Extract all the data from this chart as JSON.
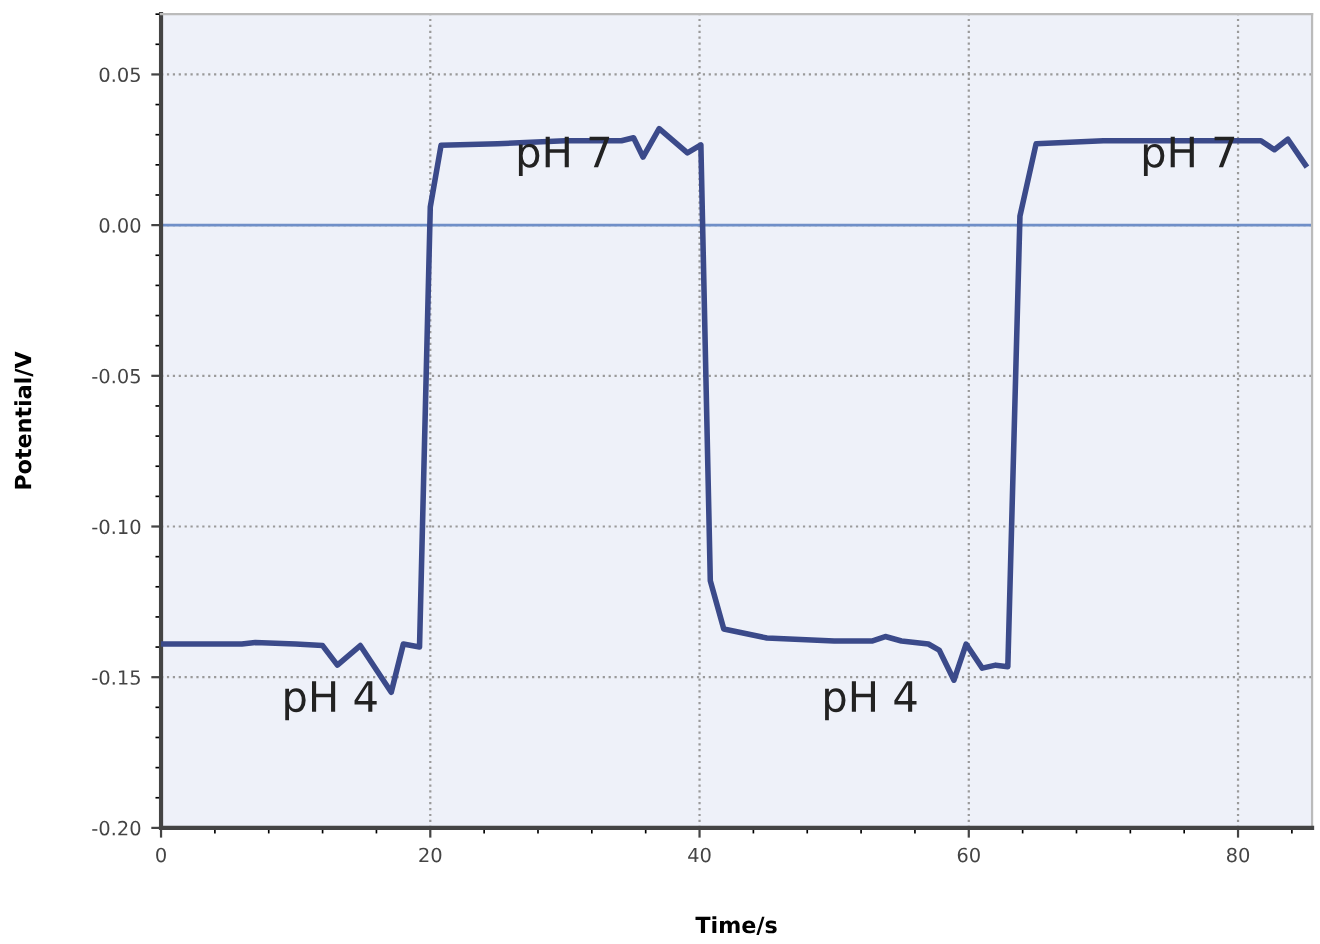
{
  "chart_data": {
    "type": "line",
    "xlabel": "Time/s",
    "ylabel": "Potential/V",
    "xlim": [
      0,
      85.5
    ],
    "ylim": [
      -0.2,
      0.07
    ],
    "xticks": [
      0,
      20,
      40,
      60,
      80
    ],
    "yticks": [
      {
        "value": -0.2,
        "label": "-0.20"
      },
      {
        "value": -0.15,
        "label": "-0.15"
      },
      {
        "value": -0.1,
        "label": "-0.10"
      },
      {
        "value": -0.05,
        "label": "-0.05"
      },
      {
        "value": 0,
        "label": "0.00"
      },
      {
        "value": 0.05,
        "label": "0.05"
      }
    ],
    "grid": true,
    "line_style": "solid",
    "marker": "none",
    "ref_lines": [
      {
        "axis": "y",
        "value": 0,
        "color": "#6f8fc8",
        "line_style": "solid"
      }
    ],
    "series": [
      {
        "color": "#3b4a8a",
        "x": [
          0,
          3,
          6,
          7,
          10,
          12,
          13.1,
          14.8,
          17.1,
          18.0,
          19.2,
          20.0,
          20.8,
          25,
          30,
          34.2,
          35.1,
          35.8,
          37.0,
          39.1,
          40.1,
          40.8,
          41.8,
          45,
          50,
          52.8,
          53.8,
          55,
          57,
          57.8,
          58.9,
          59.8,
          61.0,
          62.0,
          62.9,
          63.8,
          65.0,
          70,
          75,
          80,
          81.7,
          82.7,
          83.7,
          85.0
        ],
        "values": [
          -0.139,
          -0.139,
          -0.139,
          -0.1385,
          -0.139,
          -0.1395,
          -0.146,
          -0.1395,
          -0.155,
          -0.139,
          -0.14,
          0.006,
          0.0265,
          0.027,
          0.028,
          0.028,
          0.029,
          0.0226,
          0.032,
          0.024,
          0.0266,
          -0.118,
          -0.134,
          -0.137,
          -0.138,
          -0.138,
          -0.1365,
          -0.138,
          -0.139,
          -0.141,
          -0.151,
          -0.139,
          -0.147,
          -0.146,
          -0.1465,
          0.003,
          0.027,
          0.028,
          0.028,
          0.028,
          0.028,
          0.025,
          0.0285,
          0.02
        ]
      }
    ],
    "annotations": [
      "pH 7",
      "pH 4",
      "pH 4",
      "pH 7"
    ]
  }
}
